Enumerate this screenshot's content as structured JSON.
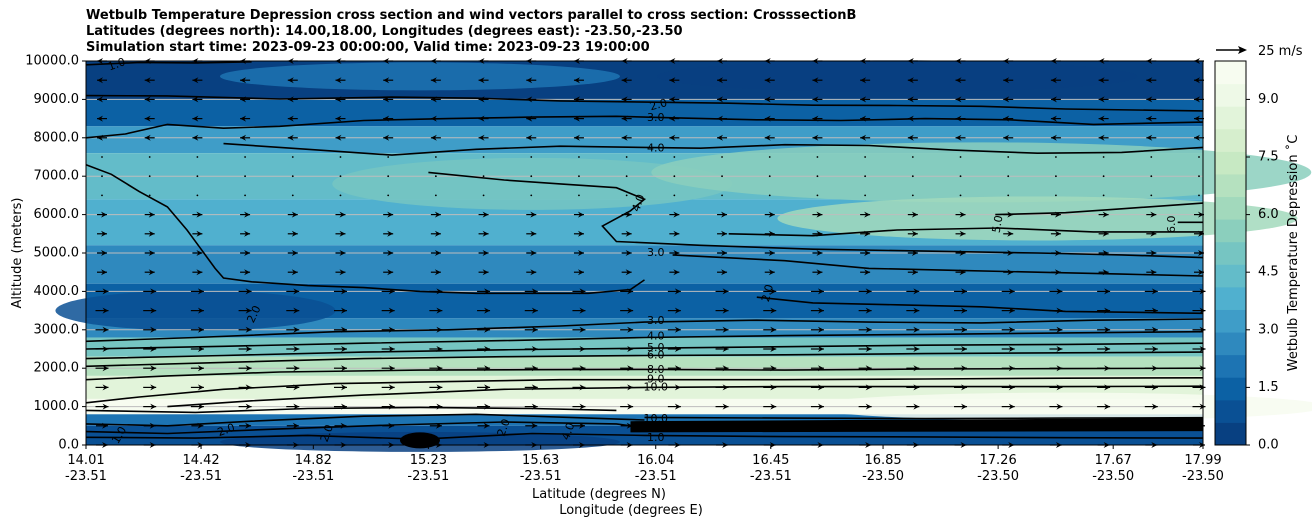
{
  "chart_data": {
    "type": "contour",
    "title_lines": [
      "Wetbulb Temperature Depression cross section and wind vectors parallel to cross section: CrosssectionB",
      "Latitudes (degrees north): 14.00,18.00, Longitudes (degrees east): -23.50,-23.50",
      "Simulation start time: 2023-09-23 00:00:00, Valid time: 2023-09-23 19:00:00"
    ],
    "ylabel": "Altitude (meters)",
    "xlabel_lines": [
      "Latitude (degrees N)",
      "Longitude (degrees E)"
    ],
    "ylim": [
      0,
      10000
    ],
    "yticks": [
      "0.0",
      "1000.0",
      "2000.0",
      "3000.0",
      "4000.0",
      "5000.0",
      "6000.0",
      "7000.0",
      "8000.0",
      "9000.0",
      "10000.0"
    ],
    "xlim": [
      14.01,
      17.99
    ],
    "x_ticks": [
      {
        "lat": 14.01,
        "lat_label": "14.01",
        "lon_label": "-23.51"
      },
      {
        "lat": 14.42,
        "lat_label": "14.42",
        "lon_label": "-23.51"
      },
      {
        "lat": 14.82,
        "lat_label": "14.82",
        "lon_label": "-23.51"
      },
      {
        "lat": 15.23,
        "lat_label": "15.23",
        "lon_label": "-23.51"
      },
      {
        "lat": 15.63,
        "lat_label": "15.63",
        "lon_label": "-23.51"
      },
      {
        "lat": 16.04,
        "lat_label": "16.04",
        "lon_label": "-23.51"
      },
      {
        "lat": 16.45,
        "lat_label": "16.45",
        "lon_label": "-23.51"
      },
      {
        "lat": 16.85,
        "lat_label": "16.85",
        "lon_label": "-23.50"
      },
      {
        "lat": 17.26,
        "lat_label": "17.26",
        "lon_label": "-23.50"
      },
      {
        "lat": 17.67,
        "lat_label": "17.67",
        "lon_label": "-23.50"
      },
      {
        "lat": 17.99,
        "lat_label": "17.99",
        "lon_label": "-23.50"
      }
    ],
    "colorbar": {
      "label": "Wetbulb Temperature Depression ˚C",
      "min": 0,
      "max": 10,
      "ticks": [
        "0.0",
        "1.5",
        "3.0",
        "4.5",
        "6.0",
        "7.5",
        "9.0"
      ],
      "colors": [
        "#084081",
        "#0a5094",
        "#0c61a4",
        "#1d74b3",
        "#2f89be",
        "#3f9dc8",
        "#50b0cf",
        "#63bcc9",
        "#76c5c2",
        "#8bcfbd",
        "#a2d9bc",
        "#b5e1bf",
        "#c7e9c3",
        "#d6eecd",
        "#e2f4da",
        "#eef9e7",
        "#f7fcf0"
      ]
    },
    "wind_key": {
      "label": "25 m/s",
      "speed": 25
    },
    "contour_levels": [
      {
        "label": "1.0",
        "lat": 14.12,
        "alt": 9900,
        "rot": -20
      },
      {
        "label": "2.0",
        "lat": 16.05,
        "alt": 8850,
        "rot": -15
      },
      {
        "label": "3.0",
        "lat": 16.04,
        "alt": 8520,
        "rot": 0
      },
      {
        "label": "4.0",
        "lat": 16.04,
        "alt": 7720,
        "rot": 0
      },
      {
        "label": "4.0",
        "lat": 15.98,
        "alt": 6300,
        "rot": -70
      },
      {
        "label": "5.0",
        "lat": 17.26,
        "alt": 5750,
        "rot": -80
      },
      {
        "label": "6.0",
        "lat": 17.88,
        "alt": 5750,
        "rot": -90
      },
      {
        "label": "3.0",
        "lat": 16.04,
        "alt": 5000,
        "rot": 0
      },
      {
        "label": "2.0",
        "lat": 16.44,
        "alt": 3950,
        "rot": -75
      },
      {
        "label": "2.0",
        "lat": 14.61,
        "alt": 3400,
        "rot": -65
      },
      {
        "label": "3.0",
        "lat": 16.04,
        "alt": 3230,
        "rot": 0
      },
      {
        "label": "4.0",
        "lat": 16.04,
        "alt": 2820,
        "rot": 0
      },
      {
        "label": "5.0",
        "lat": 16.04,
        "alt": 2520,
        "rot": 0
      },
      {
        "label": "6.0",
        "lat": 16.04,
        "alt": 2330,
        "rot": 0
      },
      {
        "label": "8.0",
        "lat": 16.04,
        "alt": 1950,
        "rot": 0
      },
      {
        "label": "9.0",
        "lat": 16.04,
        "alt": 1700,
        "rot": 0
      },
      {
        "label": "10.0",
        "lat": 16.04,
        "alt": 1500,
        "rot": 0
      },
      {
        "label": "10.0",
        "lat": 16.04,
        "alt": 680,
        "rot": 0
      },
      {
        "label": "1.0",
        "lat": 16.04,
        "alt": 180,
        "rot": 0
      },
      {
        "label": "1.0",
        "lat": 14.13,
        "alt": 250,
        "rot": -60
      },
      {
        "label": "2.0",
        "lat": 14.51,
        "alt": 380,
        "rot": -20
      },
      {
        "label": "2.0",
        "lat": 14.87,
        "alt": 300,
        "rot": -70
      },
      {
        "label": "2.0",
        "lat": 15.5,
        "alt": 450,
        "rot": -70
      },
      {
        "label": "4.0",
        "lat": 15.73,
        "alt": 350,
        "rot": -70
      }
    ],
    "series": [
      {
        "name": "contour-1",
        "points": [
          [
            14.01,
            9900
          ],
          [
            14.2,
            9960
          ],
          [
            14.4,
            9950
          ],
          [
            14.6,
            9980
          ]
        ]
      },
      {
        "name": "contour-2-top",
        "points": [
          [
            14.01,
            9100
          ],
          [
            14.3,
            9090
          ],
          [
            14.7,
            9010
          ],
          [
            15.1,
            9060
          ],
          [
            15.4,
            9030
          ],
          [
            15.7,
            8960
          ],
          [
            16.0,
            8930
          ],
          [
            16.3,
            8900
          ],
          [
            16.6,
            8850
          ],
          [
            16.9,
            8840
          ],
          [
            17.2,
            8820
          ],
          [
            17.5,
            8750
          ],
          [
            17.8,
            8720
          ],
          [
            17.99,
            8700
          ]
        ]
      },
      {
        "name": "contour-3-upper",
        "points": [
          [
            14.01,
            8000
          ],
          [
            14.15,
            8100
          ],
          [
            14.3,
            8350
          ],
          [
            14.5,
            8250
          ],
          [
            14.7,
            8300
          ],
          [
            15.0,
            8450
          ],
          [
            15.3,
            8500
          ],
          [
            15.6,
            8540
          ],
          [
            15.9,
            8560
          ],
          [
            16.1,
            8520
          ],
          [
            16.4,
            8470
          ],
          [
            16.7,
            8450
          ],
          [
            17.0,
            8500
          ],
          [
            17.3,
            8470
          ],
          [
            17.6,
            8350
          ],
          [
            17.99,
            8410
          ]
        ]
      },
      {
        "name": "contour-4-upper",
        "points": [
          [
            14.5,
            7850
          ],
          [
            14.8,
            7700
          ],
          [
            15.1,
            7550
          ],
          [
            15.4,
            7700
          ],
          [
            15.7,
            7780
          ],
          [
            16.0,
            7750
          ],
          [
            16.2,
            7730
          ],
          [
            16.5,
            7820
          ],
          [
            16.8,
            7800
          ],
          [
            17.1,
            7680
          ],
          [
            17.4,
            7600
          ],
          [
            17.7,
            7620
          ],
          [
            17.99,
            7750
          ]
        ]
      },
      {
        "name": "contour-4-mid",
        "points": [
          [
            14.01,
            7300
          ],
          [
            14.1,
            7050
          ],
          [
            14.2,
            6600
          ],
          [
            14.3,
            6200
          ],
          [
            14.37,
            5600
          ],
          [
            14.42,
            5100
          ],
          [
            14.47,
            4600
          ],
          [
            14.5,
            4350
          ],
          [
            14.6,
            4250
          ],
          [
            14.8,
            4150
          ],
          [
            15.0,
            4100
          ],
          [
            15.2,
            4000
          ],
          [
            15.4,
            3950
          ],
          [
            15.6,
            3950
          ],
          [
            15.8,
            3950
          ],
          [
            15.95,
            4050
          ],
          [
            16.0,
            4300
          ]
        ]
      },
      {
        "name": "contour-4-mid2",
        "points": [
          [
            15.23,
            7100
          ],
          [
            15.5,
            6900
          ],
          [
            15.7,
            6800
          ],
          [
            15.9,
            6700
          ],
          [
            16.0,
            6400
          ],
          [
            15.95,
            6100
          ],
          [
            15.85,
            5700
          ],
          [
            15.9,
            5300
          ],
          [
            16.2,
            5200
          ],
          [
            16.6,
            5100
          ],
          [
            17.0,
            5050
          ],
          [
            17.4,
            5000
          ],
          [
            17.7,
            4950
          ],
          [
            17.99,
            4880
          ]
        ]
      },
      {
        "name": "contour-5",
        "points": [
          [
            17.25,
            6000
          ],
          [
            17.5,
            6050
          ],
          [
            17.7,
            6150
          ],
          [
            17.99,
            6300
          ]
        ]
      },
      {
        "name": "contour-5b",
        "points": [
          [
            16.3,
            5500
          ],
          [
            16.6,
            5450
          ],
          [
            16.9,
            5600
          ],
          [
            17.26,
            5650
          ],
          [
            17.6,
            5550
          ],
          [
            17.99,
            5550
          ]
        ]
      },
      {
        "name": "contour-6",
        "points": [
          [
            17.9,
            5800
          ],
          [
            17.99,
            5800
          ]
        ]
      },
      {
        "name": "contour-3-lower",
        "points": [
          [
            16.1,
            4950
          ],
          [
            16.5,
            4800
          ],
          [
            16.8,
            4600
          ],
          [
            17.1,
            4550
          ],
          [
            17.4,
            4500
          ],
          [
            17.7,
            4450
          ],
          [
            17.99,
            4400
          ]
        ]
      },
      {
        "name": "contour-2-lower",
        "points": [
          [
            16.4,
            3850
          ],
          [
            16.6,
            3700
          ],
          [
            16.9,
            3650
          ],
          [
            17.2,
            3600
          ],
          [
            17.5,
            3480
          ],
          [
            17.99,
            3430
          ]
        ]
      },
      {
        "name": "contour-3-low",
        "points": [
          [
            14.01,
            2700
          ],
          [
            14.4,
            2800
          ],
          [
            14.9,
            2950
          ],
          [
            15.3,
            3000
          ],
          [
            15.7,
            3100
          ],
          [
            16.0,
            3200
          ],
          [
            16.4,
            3250
          ],
          [
            16.8,
            3200
          ],
          [
            17.2,
            3180
          ],
          [
            17.6,
            3250
          ],
          [
            17.99,
            3280
          ]
        ]
      },
      {
        "name": "contour-4-low",
        "points": [
          [
            14.01,
            2500
          ],
          [
            14.5,
            2570
          ],
          [
            15.0,
            2650
          ],
          [
            15.5,
            2720
          ],
          [
            16.0,
            2800
          ],
          [
            16.5,
            2850
          ],
          [
            17.0,
            2880
          ],
          [
            17.5,
            2920
          ],
          [
            17.99,
            2950
          ]
        ]
      },
      {
        "name": "contour-5-low",
        "points": [
          [
            14.01,
            2250
          ],
          [
            14.5,
            2330
          ],
          [
            15.0,
            2420
          ],
          [
            15.5,
            2480
          ],
          [
            16.0,
            2520
          ],
          [
            16.5,
            2560
          ],
          [
            17.0,
            2600
          ],
          [
            17.5,
            2620
          ],
          [
            17.99,
            2650
          ]
        ]
      },
      {
        "name": "contour-6-low",
        "points": [
          [
            14.01,
            2050
          ],
          [
            14.5,
            2150
          ],
          [
            15.0,
            2250
          ],
          [
            15.5,
            2300
          ],
          [
            16.0,
            2330
          ],
          [
            16.5,
            2350
          ],
          [
            17.0,
            2380
          ],
          [
            17.5,
            2400
          ],
          [
            17.99,
            2420
          ]
        ]
      },
      {
        "name": "contour-8",
        "points": [
          [
            14.01,
            1700
          ],
          [
            14.3,
            1800
          ],
          [
            14.7,
            1900
          ],
          [
            15.2,
            1950
          ],
          [
            15.6,
            1960
          ],
          [
            16.0,
            1970
          ],
          [
            16.5,
            1950
          ],
          [
            17.0,
            1980
          ],
          [
            17.5,
            1990
          ],
          [
            17.99,
            2000
          ]
        ]
      },
      {
        "name": "contour-9",
        "points": [
          [
            14.01,
            1100
          ],
          [
            14.2,
            1250
          ],
          [
            14.5,
            1450
          ],
          [
            14.9,
            1600
          ],
          [
            15.3,
            1650
          ],
          [
            15.7,
            1700
          ],
          [
            16.0,
            1700
          ],
          [
            16.5,
            1700
          ],
          [
            17.0,
            1720
          ],
          [
            17.5,
            1740
          ],
          [
            17.99,
            1750
          ]
        ]
      },
      {
        "name": "contour-10",
        "points": [
          [
            14.3,
            1000
          ],
          [
            14.6,
            1150
          ],
          [
            15.0,
            1300
          ],
          [
            15.5,
            1450
          ],
          [
            16.0,
            1500
          ],
          [
            16.5,
            1520
          ],
          [
            17.0,
            1520
          ],
          [
            17.5,
            1520
          ],
          [
            17.99,
            1530
          ]
        ]
      },
      {
        "name": "contour-low-1",
        "points": [
          [
            14.01,
            900
          ],
          [
            14.4,
            850
          ],
          [
            14.8,
            950
          ],
          [
            15.2,
            980
          ],
          [
            15.6,
            950
          ],
          [
            15.9,
            900
          ]
        ]
      },
      {
        "name": "contour-low-2",
        "points": [
          [
            14.01,
            550
          ],
          [
            14.3,
            500
          ],
          [
            14.6,
            620
          ],
          [
            15.0,
            750
          ],
          [
            15.4,
            800
          ],
          [
            15.8,
            700
          ],
          [
            16.0,
            650
          ]
        ]
      },
      {
        "name": "contour-low-3",
        "points": [
          [
            14.01,
            350
          ],
          [
            14.3,
            300
          ],
          [
            14.7,
            420
          ],
          [
            15.1,
            520
          ],
          [
            15.5,
            600
          ],
          [
            15.9,
            550
          ],
          [
            16.0,
            450
          ]
        ]
      },
      {
        "name": "contour-low-4",
        "points": [
          [
            14.01,
            200
          ],
          [
            14.4,
            180
          ],
          [
            14.8,
            250
          ],
          [
            15.2,
            150
          ],
          [
            15.6,
            300
          ],
          [
            16.0,
            250
          ],
          [
            16.5,
            220
          ],
          [
            17.0,
            210
          ],
          [
            17.5,
            190
          ],
          [
            17.99,
            180
          ]
        ]
      },
      {
        "name": "contour-low-5",
        "points": [
          [
            16.0,
            720
          ],
          [
            16.5,
            700
          ],
          [
            17.0,
            690
          ],
          [
            17.5,
            700
          ],
          [
            17.99,
            710
          ]
        ]
      }
    ]
  }
}
